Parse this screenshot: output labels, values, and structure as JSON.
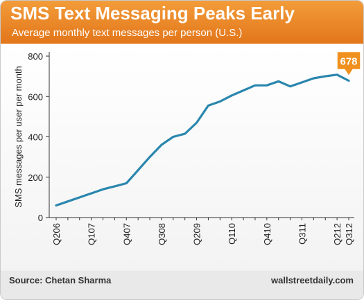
{
  "header": {
    "title": "SMS Text Messaging Peaks Early",
    "subtitle": "Average monthly text messages per person (U.S.)"
  },
  "footer": {
    "source": "Source: Chetan Sharma",
    "site": "wallstreetdaily.com"
  },
  "colors": {
    "header": "#ee8a2a",
    "line": "#2a86ad",
    "callout": "#f0901e"
  },
  "chart_data": {
    "type": "line",
    "title": "SMS Text Messaging Peaks Early",
    "ylabel": "SMS messages per user per month",
    "xlabel": "",
    "ylim": [
      0,
      800
    ],
    "yticks": [
      0,
      200,
      400,
      600,
      800
    ],
    "grid": false,
    "x": [
      "Q206",
      "Q306",
      "Q406",
      "Q107",
      "Q207",
      "Q307",
      "Q407",
      "Q108",
      "Q208",
      "Q308",
      "Q408",
      "Q109",
      "Q209",
      "Q309",
      "Q409",
      "Q110",
      "Q210",
      "Q310",
      "Q410",
      "Q111",
      "Q211",
      "Q311",
      "Q411",
      "Q112",
      "Q212",
      "Q312"
    ],
    "xtick_labels": [
      "Q206",
      "Q107",
      "Q407",
      "Q308",
      "Q209",
      "Q110",
      "Q410",
      "Q311",
      "Q212",
      "Q312"
    ],
    "series": [
      {
        "values": [
          60,
          80,
          100,
          120,
          140,
          155,
          170,
          235,
          300,
          360,
          400,
          415,
          470,
          555,
          575,
          605,
          630,
          655,
          655,
          675,
          650,
          670,
          690,
          700,
          708,
          678
        ]
      }
    ],
    "annotations": [
      {
        "x": "Q312",
        "text": "678"
      }
    ]
  }
}
